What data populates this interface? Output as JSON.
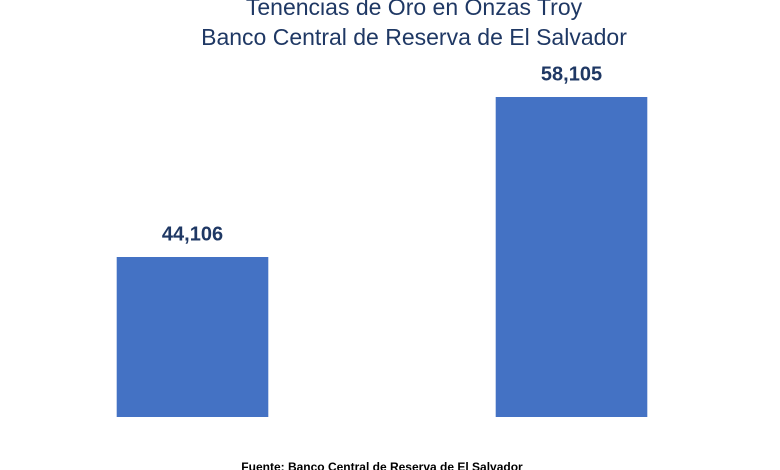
{
  "chart_data": {
    "type": "bar",
    "title": "Tenencias de Oro en Onzas Troy",
    "subtitle": "Banco Central de Reserva de El Salvador",
    "categories": [
      null,
      null
    ],
    "values": [
      44106,
      58105
    ],
    "value_labels": [
      "44,106",
      "58,105"
    ],
    "color": "#4472c4",
    "ylim": [
      30107,
      58105
    ],
    "source": "Fuente: Banco Central de Reserva de El Salvador"
  }
}
